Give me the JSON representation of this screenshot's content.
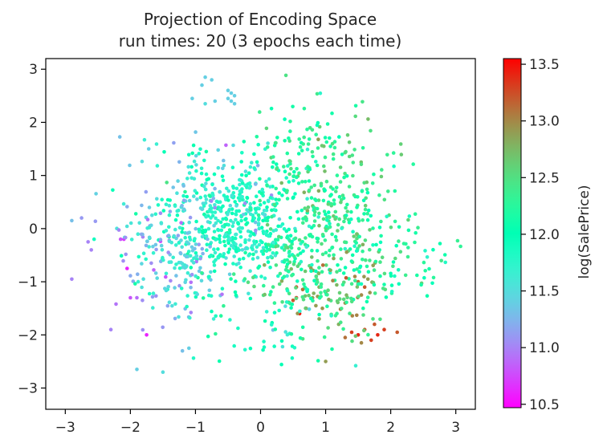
{
  "chart_data": {
    "type": "scatter",
    "title_line1": "Projection of Encoding Space",
    "title_line2": "run times: 20 (3 epochs each time)",
    "xlabel": "",
    "ylabel": "",
    "xlim": [
      -3.3,
      3.3
    ],
    "ylim": [
      -3.4,
      3.2
    ],
    "x_ticks": [
      -3,
      -2,
      -1,
      0,
      1,
      2,
      3
    ],
    "x_tick_labels": [
      "−3",
      "−2",
      "−1",
      "0",
      "1",
      "2",
      "3"
    ],
    "y_ticks": [
      -3,
      -2,
      -1,
      0,
      1,
      2,
      3
    ],
    "y_tick_labels": [
      "−3",
      "−2",
      "−1",
      "0",
      "1",
      "2",
      "3"
    ],
    "grid": false,
    "colormap": "rainbow",
    "colorbar": {
      "label": "log(SalePrice)",
      "range": [
        10.47,
        13.55
      ],
      "ticks": [
        10.5,
        11.0,
        11.5,
        12.0,
        12.5,
        13.0,
        13.5
      ],
      "tick_labels": [
        "10.5",
        "11.0",
        "11.5",
        "12.0",
        "12.5",
        "13.0",
        "13.5"
      ]
    },
    "points": [
      [
        -0.85,
        2.85,
        11.4
      ],
      [
        -0.75,
        2.8,
        11.4
      ],
      [
        -0.9,
        2.7,
        11.4
      ],
      [
        -0.5,
        2.6,
        11.4
      ],
      [
        -0.45,
        2.55,
        11.4
      ],
      [
        -0.4,
        2.5,
        11.4
      ],
      [
        -0.5,
        2.45,
        11.4
      ],
      [
        -0.45,
        2.4,
        11.4
      ],
      [
        -0.4,
        2.35,
        11.4
      ],
      [
        -0.7,
        2.4,
        11.4
      ],
      [
        -1.05,
        2.45,
        11.4
      ],
      [
        -0.85,
        2.35,
        11.5
      ],
      [
        -2.9,
        0.15,
        11.3
      ],
      [
        -2.75,
        0.2,
        11.1
      ],
      [
        -2.65,
        -0.25,
        11.0
      ],
      [
        -2.6,
        -0.4,
        11.0
      ],
      [
        -2.9,
        -0.95,
        11.0
      ],
      [
        -2.3,
        -1.9,
        11.0
      ],
      [
        -2.15,
        -0.2,
        10.8
      ],
      [
        -2.1,
        -0.2,
        10.7
      ],
      [
        -2.05,
        -0.75,
        10.6
      ],
      [
        -2.0,
        -1.3,
        10.8
      ],
      [
        -1.9,
        -1.3,
        10.9
      ],
      [
        -1.75,
        -2.0,
        10.6
      ],
      [
        -1.9,
        -2.65,
        11.4
      ],
      [
        -1.5,
        -2.7,
        11.5
      ],
      [
        -1.2,
        -2.3,
        11.3
      ],
      [
        -1.1,
        -2.25,
        11.4
      ],
      [
        0.55,
        -1.1,
        13.3
      ],
      [
        0.55,
        -1.3,
        13.4
      ],
      [
        0.6,
        -1.6,
        13.45
      ],
      [
        0.5,
        -1.35,
        13.2
      ],
      [
        0.7,
        -1.5,
        13.1
      ],
      [
        0.85,
        -1.45,
        12.9
      ],
      [
        0.9,
        -1.7,
        12.85
      ],
      [
        0.8,
        -1.3,
        12.9
      ],
      [
        1.0,
        -1.2,
        12.9
      ],
      [
        0.9,
        -1.1,
        12.8
      ],
      [
        0.95,
        -1.5,
        12.95
      ],
      [
        1.4,
        -1.95,
        13.3
      ],
      [
        1.5,
        -2.0,
        13.4
      ],
      [
        1.6,
        -1.9,
        13.2
      ],
      [
        1.7,
        -2.1,
        13.3
      ],
      [
        1.8,
        -2.0,
        13.4
      ],
      [
        1.9,
        -1.9,
        13.3
      ],
      [
        1.3,
        -2.05,
        13.1
      ],
      [
        1.55,
        -2.15,
        13.0
      ],
      [
        1.75,
        -1.8,
        13.2
      ],
      [
        1.5,
        -1.0,
        13.1
      ],
      [
        1.6,
        -1.1,
        13.2
      ],
      [
        1.55,
        -1.25,
        13.0
      ],
      [
        1.45,
        -0.9,
        13.0
      ],
      [
        1.65,
        -0.95,
        12.9
      ],
      [
        1.3,
        -1.4,
        12.95
      ],
      [
        1.2,
        -1.8,
        12.8
      ],
      [
        2.1,
        -1.95,
        13.2
      ],
      [
        1.0,
        -2.5,
        12.9
      ]
    ],
    "seed": 7
  }
}
